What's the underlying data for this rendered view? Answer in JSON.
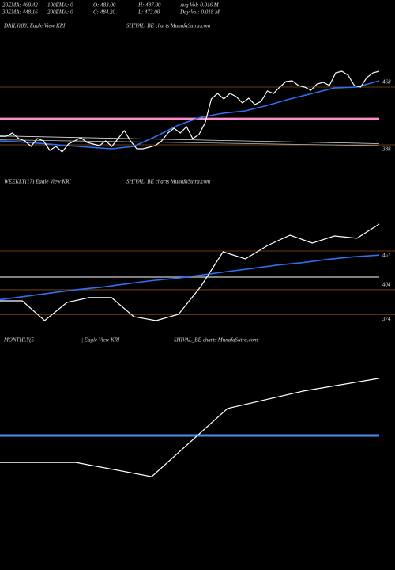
{
  "header": {
    "rows": [
      [
        "20EMA: 469.42",
        "100EMA: 0",
        "O: 483.00",
        "H: 487.00",
        "Avg Vol: 0.016  M"
      ],
      [
        "30EMA: 448.16",
        "200EMA: 0",
        "C: 484.20",
        "L: 473.00",
        "Day Vol: 0.018  M"
      ]
    ]
  },
  "chart_data": [
    {
      "type": "line",
      "titles": [
        "DAILY(88) Eagle  View  KRI",
        "SHIVAL_BE charts MunafaSutra.com"
      ],
      "ylim": [
        336.5,
        544.7
      ],
      "yticks": [
        388,
        468
      ],
      "grid_color": "#8b4a1a",
      "reference_lines": [
        {
          "value": 424,
          "color": "#ff8ec8",
          "width": 3
        }
      ],
      "series": [
        {
          "color": "#dddddd",
          "width": 0.8,
          "values": [
            400.4,
            389.7
          ]
        },
        {
          "color": "#bbbbbb",
          "width": 0.8,
          "values": [
            395,
            386.9
          ]
        },
        {
          "color": "#2f6ff0",
          "width": 1.6,
          "values": [
            393.5,
            392,
            389.5,
            386.9,
            384.7,
            382.5,
            385.8,
            400,
            415.4,
            426.3,
            431.8,
            435.1,
            442.8,
            451.6,
            459.2,
            466.8,
            468,
            476.8
          ]
        },
        {
          "color": "#ffffff",
          "width": 1.2,
          "values": [
            400,
            400,
            404.4,
            396.8,
            393.5,
            385.8,
            396.8,
            393.5,
            380.3,
            385.8,
            378.1,
            389.1,
            393.5,
            397.9,
            391.3,
            389.1,
            386.9,
            393.5,
            385.8,
            396.8,
            407.7,
            393.5,
            382.5,
            382.5,
            384.7,
            386.9,
            393.5,
            404.4,
            411,
            404.4,
            413.2,
            396.8,
            402.2,
            418.7,
            451.6,
            459.2,
            451.6,
            459.2,
            454.8,
            446.1,
            452.7,
            443.9,
            448.3,
            462.5,
            459.2,
            468,
            475.7,
            476.8,
            470.2,
            468,
            463.6,
            472.4,
            474.6,
            470.2,
            487.7,
            489.9,
            484.4,
            470.2,
            468,
            481.2,
            487.7,
            489.9
          ]
        }
      ]
    },
    {
      "type": "line",
      "titles": [
        "WEEKLY(17) Eagle  View  KRI",
        "SHIVAL_BE charts MunafaSutra.com"
      ],
      "ylim": [
        366.5,
        524.9
      ],
      "yticks": [
        374,
        404,
        451
      ],
      "grid_color": "#8b4a1a",
      "reference_lines": [
        {
          "value": 419.3,
          "color": "#aaaaaa",
          "width": 1.5
        }
      ],
      "series": [
        {
          "color": "#2f6ff0",
          "width": 1.6,
          "values": [
            392,
            396,
            400,
            404,
            407,
            411,
            415,
            418,
            422,
            426,
            430,
            434,
            437,
            441,
            444,
            446
          ]
        },
        {
          "color": "#ffffff",
          "width": 1.2,
          "values": [
            390.5,
            390.5,
            366.5,
            388.6,
            394.4,
            394.4,
            371.3,
            366.5,
            374.2,
            407.8,
            450,
            441.4,
            457.7,
            470.2,
            460.6,
            469.2,
            466.4,
            483.6
          ]
        }
      ]
    },
    {
      "type": "line",
      "titles": [
        "MONTHLY(5",
        "| Eagle  View  KRI",
        "SHIVAL_BE charts MunafaSutra.com"
      ],
      "ylim": [
        280,
        518
      ],
      "yticks": [],
      "reference_lines": [
        {
          "value": 419.2,
          "color": "#4a8df0",
          "width": 3
        }
      ],
      "series": [
        {
          "color": "#ffffff",
          "width": 1.2,
          "values": [
            388.6,
            388.6,
            372.4,
            449.8,
            469.6,
            484
          ]
        }
      ]
    }
  ]
}
